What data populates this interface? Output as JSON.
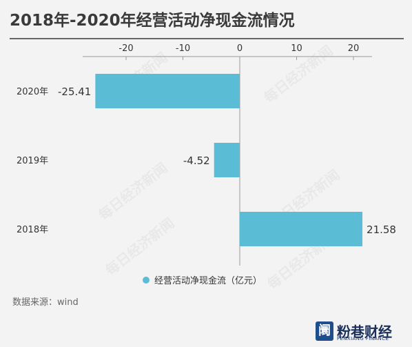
{
  "title": "2018年-2020年经营活动净现金流情况",
  "source": "数据来源：wind",
  "logo": {
    "icon": "阛",
    "name": "粉巷财经",
    "subtitle": "FENXIANG FINANCE",
    "mark": "R"
  },
  "watermark": "每日经济新闻",
  "colors": {
    "bar": "#5bbcd6",
    "axis": "#999999",
    "text": "#333333",
    "background": "#f3f3f3"
  },
  "chart_data": {
    "type": "bar",
    "orientation": "horizontal",
    "categories": [
      "2020年",
      "2019年",
      "2018年"
    ],
    "series": [
      {
        "name": "经营活动净现金流（亿元）",
        "values": [
          -25.41,
          -4.52,
          21.58
        ]
      }
    ],
    "value_labels": [
      "-25.41",
      "-4.52",
      "21.58"
    ],
    "xlim": [
      -30,
      25
    ],
    "xticks": [
      -20,
      -10,
      0,
      10,
      20
    ],
    "xtick_labels": [
      "-20",
      "-10",
      "0",
      "10",
      "20"
    ],
    "grid": false,
    "legend": "bottom-center"
  }
}
